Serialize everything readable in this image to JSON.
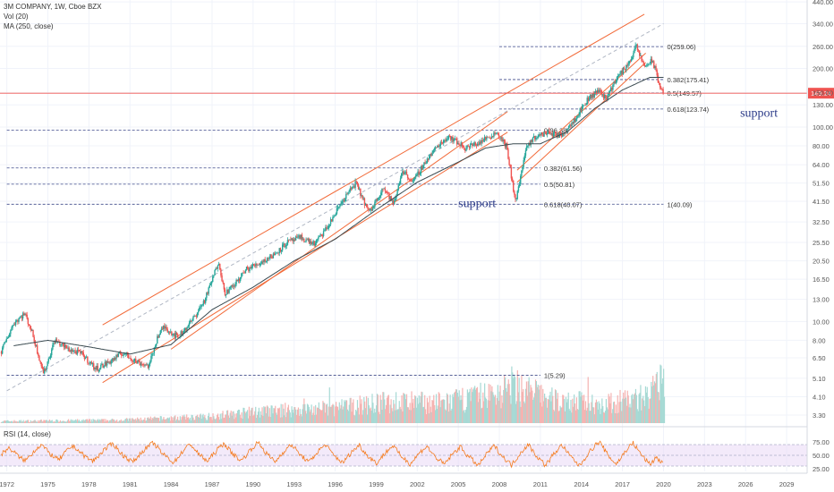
{
  "legend": {
    "title": "3M COMPANY, 1W, Cboe BZX",
    "volume": "Vol (20)",
    "ma": "MA (250, close)",
    "rsi": "RSI (14, close)"
  },
  "colors": {
    "up": "#26a69a",
    "down": "#ef5350",
    "ma": "#3a4a50",
    "channel": "#f26b3a",
    "fib": "#3f4a8a",
    "price_line": "#ef5350",
    "rsi_line": "#f57c1f",
    "rsi_band": "#e9d9f5",
    "annotation": "#2b3a88"
  },
  "chart_data": {
    "type": "candlestick",
    "x_axis": {
      "type": "date",
      "range": [
        1971.5,
        2030.5
      ],
      "tick_labels": [
        "1972",
        "1975",
        "1978",
        "1981",
        "1984",
        "1987",
        "1990",
        "1993",
        "1996",
        "1999",
        "2002",
        "2005",
        "2008",
        "2011",
        "2014",
        "2017",
        "2020",
        "2023",
        "2026",
        "2029"
      ]
    },
    "y_axis": {
      "scale": "log",
      "range": [
        3.0,
        450
      ],
      "tick_labels": [
        "440.00",
        "340.00",
        "260.00",
        "200.00",
        "150.00",
        "130.00",
        "100.00",
        "80.00",
        "64.00",
        "51.50",
        "41.50",
        "32.50",
        "25.50",
        "20.50",
        "16.50",
        "13.00",
        "10.00",
        "8.00",
        "6.50",
        "5.10",
        "4.10",
        "3.30"
      ],
      "current_price": {
        "label": "149.24",
        "value": 149.24
      }
    },
    "price_anchors": [
      [
        1971.6,
        7.0
      ],
      [
        1972.5,
        9.8
      ],
      [
        1973.3,
        11.0
      ],
      [
        1973.8,
        9.0
      ],
      [
        1974.7,
        5.4
      ],
      [
        1975.5,
        8.0
      ],
      [
        1976.5,
        7.2
      ],
      [
        1977.5,
        6.8
      ],
      [
        1978.5,
        5.7
      ],
      [
        1979.5,
        6.2
      ],
      [
        1980.5,
        6.9
      ],
      [
        1981.5,
        6.2
      ],
      [
        1982.4,
        5.9
      ],
      [
        1983.0,
        8.3
      ],
      [
        1983.5,
        9.4
      ],
      [
        1984.5,
        8.3
      ],
      [
        1985.5,
        10.0
      ],
      [
        1986.5,
        13.0
      ],
      [
        1987.5,
        20.5
      ],
      [
        1987.9,
        14.0
      ],
      [
        1988.5,
        15.0
      ],
      [
        1989.5,
        18.5
      ],
      [
        1990.5,
        20.0
      ],
      [
        1991.5,
        22.0
      ],
      [
        1992.5,
        25.5
      ],
      [
        1993.5,
        27.0
      ],
      [
        1994.5,
        25.0
      ],
      [
        1995.5,
        31.0
      ],
      [
        1996.5,
        41.5
      ],
      [
        1997.5,
        51.5
      ],
      [
        1998.5,
        36.0
      ],
      [
        1999.5,
        49.0
      ],
      [
        2000.3,
        40.0
      ],
      [
        2000.9,
        60.0
      ],
      [
        2001.7,
        52.0
      ],
      [
        2002.5,
        65.0
      ],
      [
        2003.5,
        80.0
      ],
      [
        2004.3,
        90.0
      ],
      [
        2005.5,
        78.0
      ],
      [
        2006.5,
        83.0
      ],
      [
        2007.8,
        94.0
      ],
      [
        2008.5,
        80.0
      ],
      [
        2009.2,
        41.0
      ],
      [
        2009.9,
        75.0
      ],
      [
        2010.5,
        88.0
      ],
      [
        2011.5,
        94.0
      ],
      [
        2012.5,
        90.0
      ],
      [
        2013.5,
        110.0
      ],
      [
        2014.5,
        140.0
      ],
      [
        2015.3,
        155.0
      ],
      [
        2015.8,
        140.0
      ],
      [
        2016.5,
        175.0
      ],
      [
        2017.4,
        210.0
      ],
      [
        2018.0,
        259.0
      ],
      [
        2018.6,
        205.0
      ],
      [
        2019.2,
        220.0
      ],
      [
        2019.7,
        165.0
      ],
      [
        2020.0,
        149.24
      ]
    ],
    "volume_relative": [
      [
        1972,
        0.04
      ],
      [
        1980,
        0.06
      ],
      [
        1986,
        0.12
      ],
      [
        1990,
        0.22
      ],
      [
        1996,
        0.3
      ],
      [
        2000,
        0.42
      ],
      [
        2004,
        0.4
      ],
      [
        2008,
        0.6
      ],
      [
        2009,
        0.75
      ],
      [
        2012,
        0.45
      ],
      [
        2016,
        0.38
      ],
      [
        2019,
        0.55
      ],
      [
        2020,
        0.85
      ]
    ],
    "moving_average": [
      [
        1972.5,
        7.5
      ],
      [
        1975,
        8.0
      ],
      [
        1978,
        7.4
      ],
      [
        1981,
        6.8
      ],
      [
        1984,
        7.6
      ],
      [
        1987,
        11.5
      ],
      [
        1990,
        15.0
      ],
      [
        1993,
        20.5
      ],
      [
        1996,
        26.5
      ],
      [
        1999,
        37.5
      ],
      [
        2002,
        52.0
      ],
      [
        2005,
        66.0
      ],
      [
        2007,
        78.0
      ],
      [
        2009,
        82.0
      ],
      [
        2011,
        82.0
      ],
      [
        2013,
        95.0
      ],
      [
        2015,
        125.0
      ],
      [
        2017,
        155.0
      ],
      [
        2019,
        180.0
      ],
      [
        2020,
        180.0
      ]
    ],
    "channels": [
      {
        "p1": [
          1979.0,
          9.6
        ],
        "p2": [
          2018.6,
          380.0
        ]
      },
      {
        "p1": [
          1979.0,
          4.85
        ],
        "p2": [
          2008.6,
          94.0
        ]
      },
      {
        "p1": [
          1984.0,
          7.2
        ],
        "p2": [
          2008.6,
          120.0
        ]
      },
      {
        "p1": [
          2009.3,
          60.0
        ],
        "p2": [
          2018.7,
          240.0
        ]
      },
      {
        "p1": [
          2009.3,
          52.0
        ],
        "p2": [
          2018.7,
          215.0
        ]
      }
    ],
    "trend_line": {
      "p1": [
        1972.0,
        4.4
      ],
      "p2": [
        2020.0,
        340.0
      ]
    },
    "fib_levels": [
      {
        "label": "0(259.06)",
        "value": 259.06,
        "x": [
          2008.0,
          2020.0
        ]
      },
      {
        "label": "0.382(175.41)",
        "value": 175.41,
        "x": [
          2008.0,
          2020.0
        ]
      },
      {
        "label": "0.5(149.57)",
        "value": 149.57,
        "x": [
          2008.0,
          2020.0
        ]
      },
      {
        "label": "0.618(123.74)",
        "value": 123.74,
        "x": [
          2008.0,
          2020.0
        ]
      },
      {
        "label": "0(96.38)",
        "value": 96.38,
        "x": [
          1972.0,
          2011.0
        ]
      },
      {
        "label": "0.382(61.56)",
        "value": 61.56,
        "x": [
          1972.0,
          2011.0
        ]
      },
      {
        "label": "0.5(50.81)",
        "value": 50.81,
        "x": [
          1972.0,
          2011.0
        ]
      },
      {
        "label": "0.618(40.07)",
        "value": 40.07,
        "x": [
          1972.0,
          2011.0
        ]
      },
      {
        "label": "1(40.09)",
        "value": 40.09,
        "x": [
          2011.0,
          2020.0
        ]
      },
      {
        "label": "1(5.29)",
        "value": 5.29,
        "x": [
          1972.0,
          2011.0
        ]
      }
    ],
    "annotations": [
      {
        "text": "support",
        "x": 2005.0,
        "y": 40.5
      },
      {
        "text": "support",
        "x": 2025.6,
        "y": 118.0
      }
    ],
    "rsi": {
      "range": [
        20,
        85
      ],
      "tick_labels": [
        "75.00",
        "50.00",
        "25.00"
      ],
      "band": [
        30,
        70
      ],
      "values": [
        52,
        58,
        63,
        60,
        55,
        48,
        44,
        40,
        46,
        53,
        60,
        66,
        70,
        62,
        55,
        50,
        45,
        42,
        48,
        56,
        62,
        67,
        64,
        58,
        52,
        47,
        43,
        39,
        44,
        51,
        58,
        63,
        68,
        72,
        65,
        57,
        50,
        46,
        41,
        38,
        45,
        52,
        59,
        64,
        69,
        73,
        66,
        58,
        51,
        47,
        42,
        36,
        44,
        52,
        60,
        66,
        71,
        63,
        55,
        49,
        44,
        39,
        46,
        54,
        61,
        67,
        72,
        64,
        56,
        50,
        45,
        40,
        47,
        55,
        62,
        68,
        74,
        66,
        57,
        50,
        44,
        38,
        45,
        53,
        60,
        65,
        70,
        62,
        54,
        48,
        43,
        37,
        44,
        52,
        59,
        65,
        70,
        61,
        53,
        47,
        42,
        36,
        43,
        51,
        58,
        64,
        69,
        60,
        52,
        46,
        41,
        35,
        42,
        50,
        57,
        63,
        68,
        59,
        51,
        45,
        40,
        34,
        41,
        49,
        56,
        62,
        67,
        58,
        50,
        44,
        39,
        33,
        40,
        48,
        55,
        61,
        66,
        57,
        49,
        44,
        38,
        30,
        38,
        47,
        55,
        62,
        68,
        59,
        50,
        44,
        38,
        32,
        40,
        49,
        57,
        64,
        70,
        61,
        52,
        45,
        39,
        31,
        39,
        48,
        56,
        63,
        69,
        60,
        51,
        45,
        38,
        30,
        38,
        47,
        56,
        63,
        70,
        75,
        66,
        55,
        47,
        40,
        34,
        42,
        51,
        60,
        67,
        73,
        64,
        55,
        47,
        40,
        33,
        40,
        48,
        36,
        42
      ]
    }
  }
}
